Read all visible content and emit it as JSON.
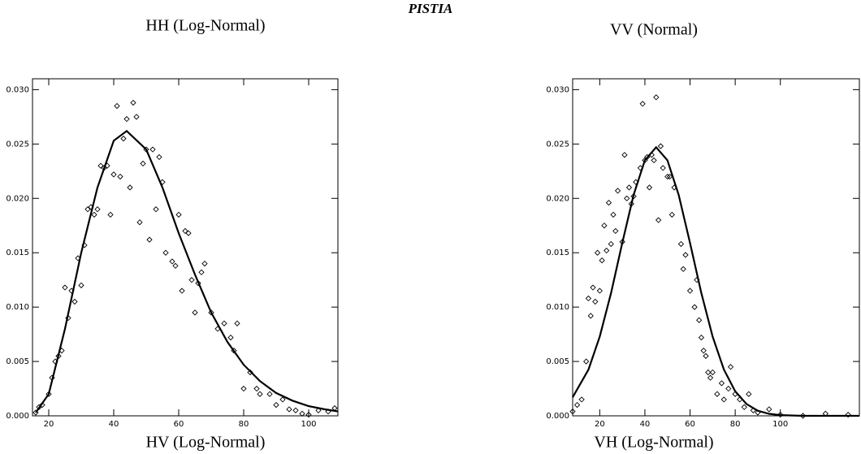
{
  "title": "PISTIA",
  "chart_data": [
    {
      "type": "scatter",
      "title": "HH (Log-Normal)",
      "caption": "HV (Log-Normal)",
      "xlim": [
        15,
        109
      ],
      "ylim": [
        0,
        0.031
      ],
      "xticks": [
        20,
        40,
        60,
        80,
        100
      ],
      "yticks": [
        {
          "value": 0,
          "label": "0.000"
        },
        {
          "value": 0.005,
          "label": "0.005"
        },
        {
          "value": 0.01,
          "label": "0.010"
        },
        {
          "value": 0.015,
          "label": "0.015"
        },
        {
          "value": 0.02,
          "label": "0.020"
        },
        {
          "value": 0.025,
          "label": "0.025"
        },
        {
          "value": 0.03,
          "label": "0.030"
        }
      ],
      "series": [
        {
          "kind": "points",
          "color": "#000000",
          "x": [
            16,
            17,
            18,
            20,
            21,
            22,
            23,
            24,
            25,
            26,
            27,
            28,
            29,
            30,
            31,
            32,
            33,
            34,
            35,
            36,
            37,
            38,
            39,
            40,
            41,
            42,
            43,
            44,
            45,
            46,
            47,
            48,
            49,
            50,
            51,
            52,
            53,
            54,
            55,
            56,
            58,
            59,
            60,
            61,
            62,
            63,
            64,
            65,
            66,
            67,
            68,
            70,
            72,
            74,
            76,
            77,
            78,
            80,
            82,
            84,
            85,
            88,
            90,
            92,
            94,
            96,
            98,
            100,
            103,
            106,
            108
          ],
          "values": [
            0.0003,
            0.0008,
            0.001,
            0.002,
            0.0035,
            0.005,
            0.0055,
            0.006,
            0.0118,
            0.009,
            0.0115,
            0.0105,
            0.0145,
            0.012,
            0.0157,
            0.019,
            0.0192,
            0.0185,
            0.019,
            0.023,
            0.0228,
            0.023,
            0.0185,
            0.0222,
            0.0285,
            0.022,
            0.0255,
            0.0273,
            0.021,
            0.0288,
            0.0275,
            0.0178,
            0.0232,
            0.0245,
            0.0162,
            0.0245,
            0.019,
            0.0238,
            0.0215,
            0.015,
            0.0142,
            0.0138,
            0.0185,
            0.0115,
            0.017,
            0.0168,
            0.0125,
            0.0095,
            0.0122,
            0.0132,
            0.014,
            0.0095,
            0.008,
            0.0085,
            0.0072,
            0.006,
            0.0085,
            0.0025,
            0.004,
            0.0025,
            0.002,
            0.002,
            0.001,
            0.0015,
            0.0006,
            0.0005,
            0.0002,
            0.0001,
            0.0005,
            0.0004,
            0.0007
          ]
        },
        {
          "kind": "curve",
          "color": "#000000",
          "x": [
            16,
            20,
            25,
            30,
            35,
            40,
            44,
            50,
            55,
            60,
            65,
            70,
            75,
            80,
            85,
            90,
            95,
            100,
            105,
            109
          ],
          "values": [
            0.0003,
            0.002,
            0.008,
            0.015,
            0.021,
            0.0253,
            0.0262,
            0.0245,
            0.021,
            0.0168,
            0.013,
            0.0095,
            0.0068,
            0.0047,
            0.0032,
            0.0021,
            0.0014,
            0.0009,
            0.0006,
            0.0004
          ]
        }
      ]
    },
    {
      "type": "scatter",
      "title": "VV (Normal)",
      "caption": "VH (Log-Normal)",
      "xlim": [
        8,
        135
      ],
      "ylim": [
        0,
        0.031
      ],
      "xticks": [
        20,
        40,
        60,
        80,
        100
      ],
      "yticks": [
        {
          "value": 0,
          "label": "0.000"
        },
        {
          "value": 0.005,
          "label": "0.005"
        },
        {
          "value": 0.01,
          "label": "0.010"
        },
        {
          "value": 0.015,
          "label": "0.015"
        },
        {
          "value": 0.02,
          "label": "0.020"
        },
        {
          "value": 0.025,
          "label": "0.025"
        },
        {
          "value": 0.03,
          "label": "0.030"
        }
      ],
      "series": [
        {
          "kind": "points",
          "color": "#000000",
          "x": [
            8,
            10,
            12,
            14,
            15,
            16,
            17,
            18,
            19,
            20,
            21,
            22,
            23,
            24,
            25,
            26,
            27,
            28,
            30,
            31,
            32,
            33,
            34,
            35,
            36,
            38,
            39,
            40,
            41,
            42,
            43,
            44,
            45,
            46,
            47,
            48,
            50,
            51,
            52,
            53,
            56,
            57,
            58,
            60,
            62,
            63,
            64,
            65,
            66,
            67,
            68,
            69,
            70,
            72,
            74,
            75,
            77,
            78,
            80,
            82,
            84,
            86,
            88,
            90,
            95,
            100,
            110,
            120,
            130
          ],
          "values": [
            0.0004,
            0.001,
            0.0015,
            0.005,
            0.0108,
            0.0092,
            0.0118,
            0.0105,
            0.015,
            0.0115,
            0.0143,
            0.0175,
            0.0152,
            0.0196,
            0.0158,
            0.0185,
            0.017,
            0.0207,
            0.016,
            0.024,
            0.02,
            0.021,
            0.0195,
            0.0202,
            0.0215,
            0.0228,
            0.0287,
            0.0235,
            0.0238,
            0.021,
            0.024,
            0.0235,
            0.0293,
            0.018,
            0.0248,
            0.0228,
            0.022,
            0.022,
            0.0185,
            0.021,
            0.0158,
            0.0135,
            0.0148,
            0.0115,
            0.01,
            0.0125,
            0.0088,
            0.0072,
            0.006,
            0.0055,
            0.004,
            0.0035,
            0.004,
            0.002,
            0.003,
            0.0015,
            0.0025,
            0.0045,
            0.002,
            0.0015,
            0.0008,
            0.002,
            0.0005,
            0.0003,
            0.0006,
            0.0001,
            0,
            0.0002,
            0.0001
          ]
        },
        {
          "kind": "curve",
          "color": "#000000",
          "x": [
            8,
            15,
            20,
            25,
            30,
            35,
            40,
            45,
            50,
            55,
            60,
            65,
            70,
            75,
            80,
            85,
            90,
            95,
            100,
            110,
            120,
            135
          ],
          "values": [
            0.0017,
            0.00426,
            0.0073,
            0.0113,
            0.0159,
            0.0203,
            0.0235,
            0.0247,
            0.0235,
            0.0203,
            0.0159,
            0.0113,
            0.0073,
            0.00426,
            0.00226,
            0.00109,
            0.00047,
            0.00019,
            7e-05,
            0,
            0,
            0
          ]
        }
      ]
    }
  ]
}
